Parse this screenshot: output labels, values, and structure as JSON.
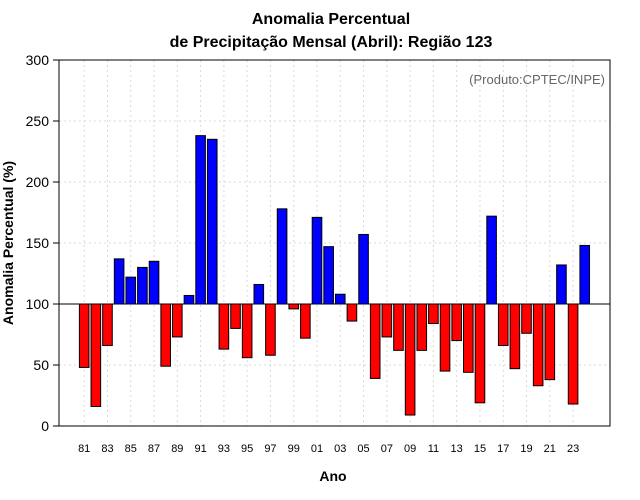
{
  "chart_data": {
    "type": "bar",
    "title": [
      "Anomalia Percentual",
      "de Precipitação Mensal (Abril): Região 123"
    ],
    "xlabel": "Ano",
    "ylabel": "Anomalia Percentual (%)",
    "source_note": "(Produto:CPTEC/INPE)",
    "baseline": 100,
    "ylim": [
      0,
      300
    ],
    "yticks": [
      0,
      50,
      100,
      150,
      200,
      250,
      300
    ],
    "grid": true,
    "colors": {
      "above": "#0000ff",
      "below": "#ff0000",
      "grid": "#d9d9d9",
      "axis": "#000000",
      "note": "#666666"
    },
    "categories": [
      "81",
      "82",
      "83",
      "84",
      "85",
      "86",
      "87",
      "88",
      "89",
      "90",
      "91",
      "92",
      "93",
      "94",
      "95",
      "96",
      "97",
      "98",
      "99",
      "00",
      "01",
      "02",
      "03",
      "04",
      "05",
      "06",
      "07",
      "08",
      "09",
      "10",
      "11",
      "12",
      "13",
      "14",
      "15",
      "16",
      "17",
      "18",
      "19",
      "20",
      "21",
      "22",
      "23",
      "24"
    ],
    "tick_labels": [
      "81",
      "83",
      "85",
      "87",
      "89",
      "91",
      "93",
      "95",
      "97",
      "99",
      "01",
      "03",
      "05",
      "07",
      "09",
      "11",
      "13",
      "15",
      "17",
      "19",
      "21",
      "23"
    ],
    "values": [
      48,
      16,
      66,
      137,
      122,
      130,
      135,
      49,
      73,
      107,
      238,
      235,
      63,
      80,
      56,
      116,
      58,
      178,
      96,
      72,
      171,
      147,
      108,
      86,
      157,
      39,
      73,
      62,
      9,
      62,
      84,
      45,
      70,
      44,
      19,
      172,
      66,
      47,
      76,
      33,
      38,
      132,
      18,
      148
    ]
  }
}
